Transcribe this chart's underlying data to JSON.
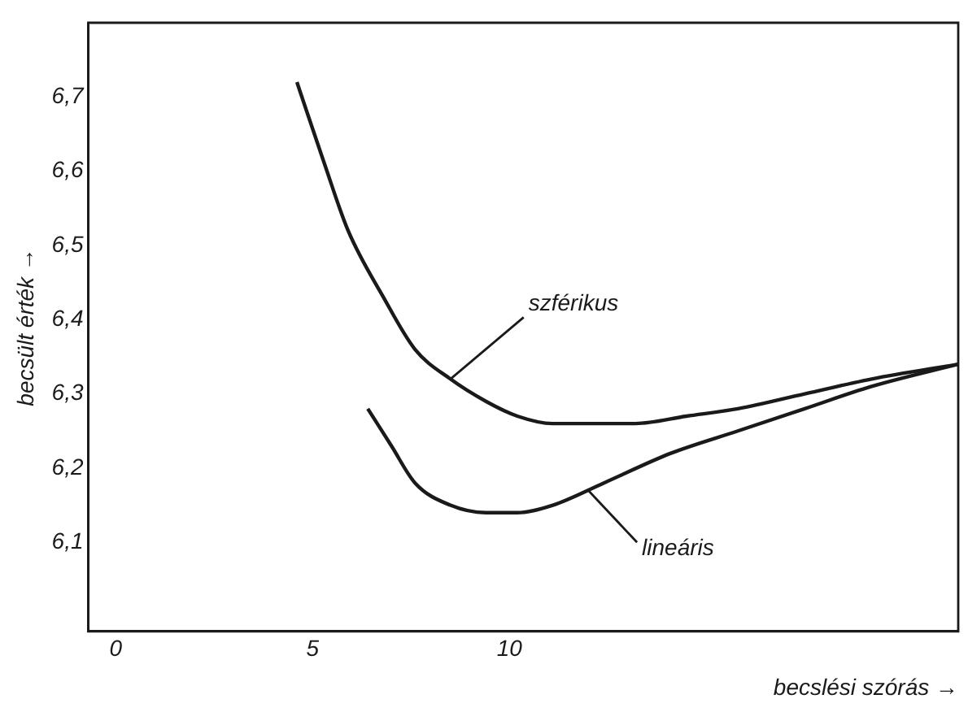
{
  "chart_data": {
    "type": "line",
    "xlabel": "becslési szórás →",
    "ylabel": "becsült érték →",
    "xlim": [
      -0.7,
      21.4
    ],
    "xticks": [
      0,
      5,
      10
    ],
    "ylim": [
      5.98,
      6.8
    ],
    "yticks": [
      {
        "value": 6.1,
        "label": "6,1"
      },
      {
        "value": 6.2,
        "label": "6,2"
      },
      {
        "value": 6.3,
        "label": "6,3"
      },
      {
        "value": 6.4,
        "label": "6,4"
      },
      {
        "value": 6.5,
        "label": "6,5"
      },
      {
        "value": 6.6,
        "label": "6,6"
      },
      {
        "value": 6.7,
        "label": "6,7"
      }
    ],
    "grid": false,
    "legend": false,
    "marker": "none",
    "line_style": "solid",
    "series": [
      {
        "color": "#1a1a1a",
        "x": [
          4.6,
          5.3,
          5.9,
          6.8,
          7.6,
          8.5,
          9.4,
          10.2,
          11.1,
          11.9,
          13.2,
          14.5,
          15.8,
          17.5,
          19.2,
          21.4
        ],
        "values": [
          6.72,
          6.61,
          6.52,
          6.43,
          6.36,
          6.32,
          6.29,
          6.27,
          6.26,
          6.26,
          6.26,
          6.27,
          6.28,
          6.3,
          6.32,
          6.34
        ]
      },
      {
        "color": "#1a1a1a",
        "x": [
          6.4,
          7.0,
          7.6,
          8.5,
          9.4,
          10.2,
          11.1,
          12.4,
          14.1,
          15.8,
          17.5,
          19.2,
          21.4
        ],
        "values": [
          6.28,
          6.23,
          6.18,
          6.15,
          6.14,
          6.14,
          6.15,
          6.18,
          6.22,
          6.25,
          6.28,
          6.31,
          6.34
        ]
      }
    ],
    "annotations": [
      {
        "text": "szférikus",
        "x": 8.5,
        "y": 6.32
      },
      {
        "text": "lineáris",
        "x": 12.0,
        "y": 6.17
      }
    ]
  }
}
